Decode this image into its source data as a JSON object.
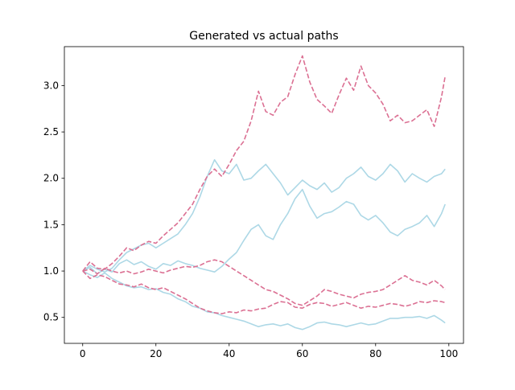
{
  "chart_data": {
    "type": "line",
    "title": "Generated vs actual paths",
    "xlabel": "",
    "ylabel": "",
    "xlim": [
      -5,
      104
    ],
    "ylim": [
      0.22,
      3.42
    ],
    "xticks": [
      0,
      20,
      40,
      60,
      80,
      100
    ],
    "xtick_labels": [
      "0",
      "20",
      "40",
      "60",
      "80",
      "100"
    ],
    "yticks": [
      0.5,
      1.0,
      1.5,
      2.0,
      2.5,
      3.0
    ],
    "ytick_labels": [
      "0.5",
      "1.0",
      "1.5",
      "2.0",
      "2.5",
      "3.0"
    ],
    "grid": false,
    "legend": false,
    "colors": {
      "solid": "#add8e6",
      "dashed": "#db7093"
    },
    "series": [
      {
        "style": "solid",
        "points": [
          [
            0,
            1.0
          ],
          [
            2,
            1.04
          ],
          [
            4,
            0.97
          ],
          [
            6,
            1.02
          ],
          [
            8,
            0.99
          ],
          [
            10,
            1.08
          ],
          [
            12,
            1.12
          ],
          [
            14,
            1.07
          ],
          [
            16,
            1.1
          ],
          [
            18,
            1.05
          ],
          [
            20,
            1.02
          ],
          [
            22,
            1.08
          ],
          [
            24,
            1.06
          ],
          [
            26,
            1.11
          ],
          [
            28,
            1.08
          ],
          [
            30,
            1.06
          ],
          [
            32,
            1.03
          ],
          [
            34,
            1.01
          ],
          [
            36,
            0.99
          ],
          [
            38,
            1.05
          ],
          [
            40,
            1.13
          ],
          [
            42,
            1.2
          ],
          [
            44,
            1.33
          ],
          [
            46,
            1.45
          ],
          [
            48,
            1.5
          ],
          [
            50,
            1.38
          ],
          [
            52,
            1.34
          ],
          [
            54,
            1.5
          ],
          [
            56,
            1.62
          ],
          [
            58,
            1.78
          ],
          [
            60,
            1.88
          ],
          [
            62,
            1.7
          ],
          [
            64,
            1.57
          ],
          [
            66,
            1.62
          ],
          [
            68,
            1.64
          ],
          [
            70,
            1.69
          ],
          [
            72,
            1.75
          ],
          [
            74,
            1.72
          ],
          [
            76,
            1.6
          ],
          [
            78,
            1.55
          ],
          [
            80,
            1.6
          ],
          [
            82,
            1.52
          ],
          [
            84,
            1.42
          ],
          [
            86,
            1.38
          ],
          [
            88,
            1.45
          ],
          [
            90,
            1.48
          ],
          [
            92,
            1.52
          ],
          [
            94,
            1.6
          ],
          [
            96,
            1.48
          ],
          [
            98,
            1.62
          ],
          [
            99,
            1.72
          ]
        ]
      },
      {
        "style": "solid",
        "points": [
          [
            0,
            1.0
          ],
          [
            2,
            1.06
          ],
          [
            4,
            1.02
          ],
          [
            6,
            0.99
          ],
          [
            8,
            1.03
          ],
          [
            10,
            1.12
          ],
          [
            12,
            1.2
          ],
          [
            14,
            1.24
          ],
          [
            16,
            1.28
          ],
          [
            18,
            1.3
          ],
          [
            20,
            1.25
          ],
          [
            22,
            1.3
          ],
          [
            24,
            1.35
          ],
          [
            26,
            1.4
          ],
          [
            28,
            1.5
          ],
          [
            30,
            1.62
          ],
          [
            32,
            1.8
          ],
          [
            34,
            2.02
          ],
          [
            36,
            2.2
          ],
          [
            38,
            2.08
          ],
          [
            40,
            2.05
          ],
          [
            42,
            2.15
          ],
          [
            44,
            1.98
          ],
          [
            46,
            2.0
          ],
          [
            48,
            2.08
          ],
          [
            50,
            2.15
          ],
          [
            52,
            2.05
          ],
          [
            54,
            1.95
          ],
          [
            56,
            1.82
          ],
          [
            58,
            1.9
          ],
          [
            60,
            1.98
          ],
          [
            62,
            1.92
          ],
          [
            64,
            1.88
          ],
          [
            66,
            1.95
          ],
          [
            68,
            1.85
          ],
          [
            70,
            1.9
          ],
          [
            72,
            2.0
          ],
          [
            74,
            2.05
          ],
          [
            76,
            2.12
          ],
          [
            78,
            2.02
          ],
          [
            80,
            1.98
          ],
          [
            82,
            2.05
          ],
          [
            84,
            2.15
          ],
          [
            86,
            2.08
          ],
          [
            88,
            1.96
          ],
          [
            90,
            2.05
          ],
          [
            92,
            2.0
          ],
          [
            94,
            1.96
          ],
          [
            96,
            2.02
          ],
          [
            98,
            2.05
          ],
          [
            99,
            2.1
          ]
        ]
      },
      {
        "style": "solid",
        "points": [
          [
            0,
            1.0
          ],
          [
            2,
            0.96
          ],
          [
            4,
            0.93
          ],
          [
            6,
            0.98
          ],
          [
            8,
            0.92
          ],
          [
            10,
            0.88
          ],
          [
            12,
            0.84
          ],
          [
            14,
            0.82
          ],
          [
            16,
            0.83
          ],
          [
            18,
            0.8
          ],
          [
            20,
            0.81
          ],
          [
            22,
            0.77
          ],
          [
            24,
            0.75
          ],
          [
            26,
            0.7
          ],
          [
            28,
            0.67
          ],
          [
            30,
            0.62
          ],
          [
            32,
            0.6
          ],
          [
            34,
            0.56
          ],
          [
            36,
            0.55
          ],
          [
            38,
            0.52
          ],
          [
            40,
            0.5
          ],
          [
            42,
            0.48
          ],
          [
            44,
            0.46
          ],
          [
            46,
            0.43
          ],
          [
            48,
            0.4
          ],
          [
            50,
            0.42
          ],
          [
            52,
            0.43
          ],
          [
            54,
            0.41
          ],
          [
            56,
            0.43
          ],
          [
            58,
            0.39
          ],
          [
            60,
            0.37
          ],
          [
            62,
            0.4
          ],
          [
            64,
            0.44
          ],
          [
            66,
            0.45
          ],
          [
            68,
            0.43
          ],
          [
            70,
            0.42
          ],
          [
            72,
            0.4
          ],
          [
            74,
            0.42
          ],
          [
            76,
            0.44
          ],
          [
            78,
            0.42
          ],
          [
            80,
            0.43
          ],
          [
            82,
            0.46
          ],
          [
            84,
            0.49
          ],
          [
            86,
            0.49
          ],
          [
            88,
            0.5
          ],
          [
            90,
            0.5
          ],
          [
            92,
            0.51
          ],
          [
            94,
            0.49
          ],
          [
            96,
            0.52
          ],
          [
            98,
            0.47
          ],
          [
            99,
            0.44
          ]
        ]
      },
      {
        "style": "dashed",
        "points": [
          [
            0,
            1.0
          ],
          [
            2,
            1.1
          ],
          [
            4,
            1.03
          ],
          [
            6,
            1.02
          ],
          [
            8,
            1.08
          ],
          [
            10,
            1.16
          ],
          [
            12,
            1.25
          ],
          [
            14,
            1.22
          ],
          [
            16,
            1.28
          ],
          [
            18,
            1.32
          ],
          [
            20,
            1.3
          ],
          [
            22,
            1.38
          ],
          [
            24,
            1.45
          ],
          [
            26,
            1.52
          ],
          [
            28,
            1.62
          ],
          [
            30,
            1.72
          ],
          [
            32,
            1.88
          ],
          [
            34,
            2.02
          ],
          [
            36,
            2.1
          ],
          [
            38,
            2.02
          ],
          [
            40,
            2.15
          ],
          [
            42,
            2.3
          ],
          [
            44,
            2.4
          ],
          [
            46,
            2.62
          ],
          [
            48,
            2.94
          ],
          [
            50,
            2.72
          ],
          [
            52,
            2.68
          ],
          [
            54,
            2.82
          ],
          [
            56,
            2.88
          ],
          [
            58,
            3.12
          ],
          [
            60,
            3.32
          ],
          [
            62,
            3.04
          ],
          [
            64,
            2.85
          ],
          [
            66,
            2.78
          ],
          [
            68,
            2.7
          ],
          [
            70,
            2.9
          ],
          [
            72,
            3.08
          ],
          [
            74,
            2.95
          ],
          [
            76,
            3.21
          ],
          [
            78,
            3.0
          ],
          [
            80,
            2.92
          ],
          [
            82,
            2.8
          ],
          [
            84,
            2.62
          ],
          [
            86,
            2.68
          ],
          [
            88,
            2.6
          ],
          [
            90,
            2.62
          ],
          [
            92,
            2.68
          ],
          [
            94,
            2.74
          ],
          [
            96,
            2.56
          ],
          [
            98,
            2.88
          ],
          [
            99,
            3.1
          ]
        ]
      },
      {
        "style": "dashed",
        "points": [
          [
            0,
            1.0
          ],
          [
            2,
            1.02
          ],
          [
            4,
            0.97
          ],
          [
            6,
            1.03
          ],
          [
            8,
            1.0
          ],
          [
            10,
            0.98
          ],
          [
            12,
            1.0
          ],
          [
            14,
            0.97
          ],
          [
            16,
            0.99
          ],
          [
            18,
            1.02
          ],
          [
            20,
            1.0
          ],
          [
            22,
            0.98
          ],
          [
            24,
            1.01
          ],
          [
            26,
            1.03
          ],
          [
            28,
            1.05
          ],
          [
            30,
            1.04
          ],
          [
            32,
            1.06
          ],
          [
            34,
            1.1
          ],
          [
            36,
            1.12
          ],
          [
            38,
            1.1
          ],
          [
            40,
            1.05
          ],
          [
            42,
            1.0
          ],
          [
            44,
            0.95
          ],
          [
            46,
            0.9
          ],
          [
            48,
            0.85
          ],
          [
            50,
            0.8
          ],
          [
            52,
            0.78
          ],
          [
            54,
            0.74
          ],
          [
            56,
            0.7
          ],
          [
            58,
            0.65
          ],
          [
            60,
            0.63
          ],
          [
            62,
            0.68
          ],
          [
            64,
            0.73
          ],
          [
            66,
            0.8
          ],
          [
            68,
            0.78
          ],
          [
            70,
            0.75
          ],
          [
            72,
            0.73
          ],
          [
            74,
            0.71
          ],
          [
            76,
            0.75
          ],
          [
            78,
            0.77
          ],
          [
            80,
            0.78
          ],
          [
            82,
            0.8
          ],
          [
            84,
            0.85
          ],
          [
            86,
            0.9
          ],
          [
            88,
            0.95
          ],
          [
            90,
            0.9
          ],
          [
            92,
            0.88
          ],
          [
            94,
            0.85
          ],
          [
            96,
            0.9
          ],
          [
            98,
            0.84
          ],
          [
            99,
            0.8
          ]
        ]
      },
      {
        "style": "dashed",
        "points": [
          [
            0,
            1.0
          ],
          [
            2,
            0.92
          ],
          [
            4,
            0.96
          ],
          [
            6,
            0.94
          ],
          [
            8,
            0.9
          ],
          [
            10,
            0.86
          ],
          [
            12,
            0.85
          ],
          [
            14,
            0.83
          ],
          [
            16,
            0.86
          ],
          [
            18,
            0.82
          ],
          [
            20,
            0.8
          ],
          [
            22,
            0.82
          ],
          [
            24,
            0.78
          ],
          [
            26,
            0.74
          ],
          [
            28,
            0.7
          ],
          [
            30,
            0.65
          ],
          [
            32,
            0.6
          ],
          [
            34,
            0.57
          ],
          [
            36,
            0.55
          ],
          [
            38,
            0.54
          ],
          [
            40,
            0.56
          ],
          [
            42,
            0.55
          ],
          [
            44,
            0.58
          ],
          [
            46,
            0.57
          ],
          [
            48,
            0.59
          ],
          [
            50,
            0.6
          ],
          [
            52,
            0.64
          ],
          [
            54,
            0.67
          ],
          [
            56,
            0.66
          ],
          [
            58,
            0.61
          ],
          [
            60,
            0.6
          ],
          [
            62,
            0.64
          ],
          [
            64,
            0.66
          ],
          [
            66,
            0.65
          ],
          [
            68,
            0.62
          ],
          [
            70,
            0.64
          ],
          [
            72,
            0.66
          ],
          [
            74,
            0.63
          ],
          [
            76,
            0.6
          ],
          [
            78,
            0.62
          ],
          [
            80,
            0.61
          ],
          [
            82,
            0.63
          ],
          [
            84,
            0.65
          ],
          [
            86,
            0.64
          ],
          [
            88,
            0.62
          ],
          [
            90,
            0.64
          ],
          [
            92,
            0.67
          ],
          [
            94,
            0.66
          ],
          [
            96,
            0.68
          ],
          [
            98,
            0.67
          ],
          [
            99,
            0.66
          ]
        ]
      }
    ]
  }
}
